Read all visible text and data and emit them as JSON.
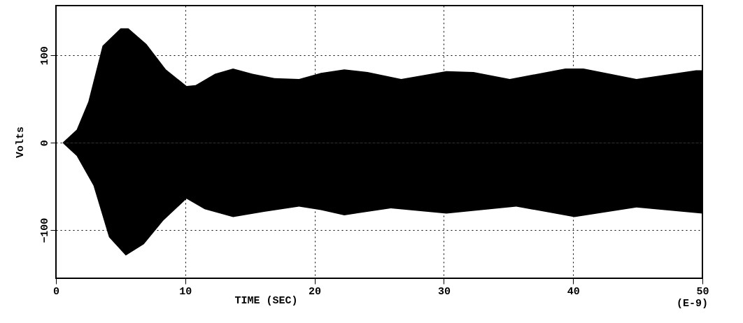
{
  "chart_data": {
    "type": "area",
    "xlabel": "TIME    (SEC)",
    "ylabel": "Volts",
    "annotations": [
      "(E-9)"
    ],
    "xlim": [
      0,
      50
    ],
    "xticks": [
      0,
      10,
      20,
      30,
      40,
      50
    ],
    "ylim": [
      -155,
      157
    ],
    "yticks": [
      -100,
      0,
      100
    ],
    "grid": true,
    "series": [
      {
        "color": "#000000",
        "x": [
          0,
          0.5,
          1.6,
          2.5,
          3.6,
          5.0,
          5.6,
          7.0,
          8.5,
          10.1,
          10.8,
          12.3,
          13.7,
          15.2,
          16.9,
          18.8,
          20.5,
          22.3,
          24.1,
          26.7,
          30.2,
          32.3,
          35.1,
          39.4,
          40.8,
          44.9,
          49.5,
          50
        ],
        "values": [
          0,
          0,
          15,
          47,
          111,
          131,
          131,
          113,
          84,
          65,
          66,
          79,
          85,
          79,
          74,
          73,
          80,
          84,
          81,
          73,
          82,
          81,
          73,
          85,
          85,
          73,
          83,
          83
        ]
      },
      {
        "color": "#000000",
        "x": [
          0,
          0.5,
          1.6,
          2.9,
          4.1,
          5.4,
          6.8,
          8.3,
          10.1,
          11.5,
          13.7,
          16.1,
          18.8,
          20.5,
          22.3,
          25.9,
          30.2,
          35.6,
          40.1,
          44.9,
          50
        ],
        "values": [
          0,
          0,
          -15,
          -49,
          -108,
          -129,
          -116,
          -89,
          -64,
          -76,
          -85,
          -79,
          -73,
          -77,
          -83,
          -75,
          -81,
          -73,
          -85,
          -74,
          -81
        ]
      }
    ]
  }
}
